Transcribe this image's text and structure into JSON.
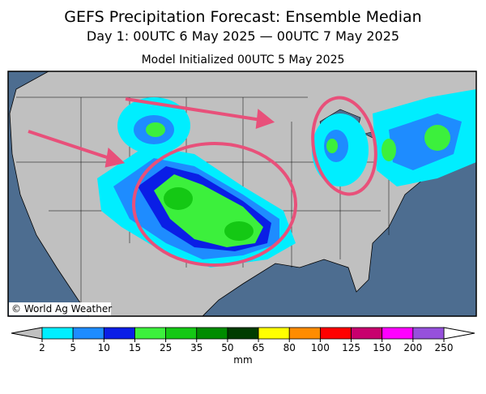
{
  "header": {
    "title": "GEFS Precipitation Forecast: Ensemble Median",
    "subtitle": "Day 1: 00UTC 6 May 2025 — 00UTC 7 May 2025",
    "initialized": "Model Initialized 00UTC 5 May 2025"
  },
  "map": {
    "credit": "© World Ag Weather"
  },
  "colorbar": {
    "ticks": [
      2,
      5,
      10,
      15,
      25,
      35,
      50,
      65,
      80,
      100,
      125,
      150,
      200,
      250
    ],
    "colors": [
      "#00eeff",
      "#1e8cff",
      "#0a1ee6",
      "#3cf03c",
      "#14c814",
      "#008c00",
      "#003c00",
      "#ffff00",
      "#ff8c00",
      "#ff0000",
      "#c8006e",
      "#ff00ff",
      "#9650dc"
    ],
    "under_color": "#c0c0c0",
    "over_color": "#ffffff",
    "unit": "mm"
  }
}
